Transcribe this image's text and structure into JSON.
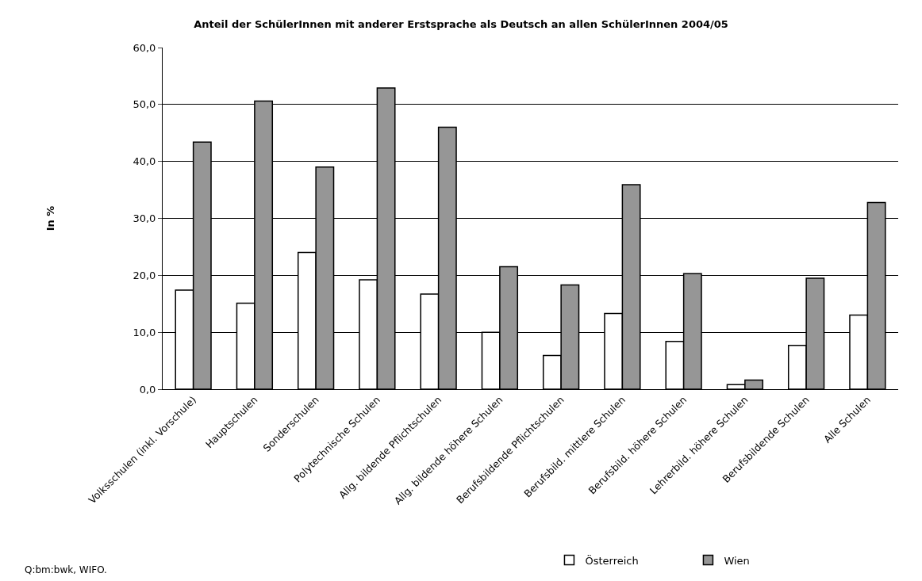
{
  "chart_data": {
    "type": "bar",
    "title": "Anteil der SchülerInnen mit anderer Erstsprache als Deutsch an allen SchülerInnen 2004/05",
    "ylabel": "In %",
    "categories": [
      "Volksschulen (inkl. Vorschule)",
      "Hauptschulen",
      "Sonderschulen",
      "Polytechnische Schulen",
      "Allg. bildende Pflichtschulen",
      "Allg. bildende höhere Schulen",
      "Berufsbildende Pflichtschulen",
      "Berufsbild. mittlere Schulen",
      "Berufsbild. höhere Schulen",
      "Lehrerbild. höhere Schulen",
      "Berufsbildende Schulen",
      "Alle Schulen"
    ],
    "series": [
      {
        "name": "Österreich",
        "color": "#ffffff",
        "values": [
          17.4,
          15.1,
          24.0,
          19.2,
          16.7,
          10.0,
          5.9,
          13.3,
          8.4,
          0.8,
          7.7,
          13.0
        ]
      },
      {
        "name": "Wien",
        "color": "#969696",
        "values": [
          43.4,
          50.6,
          39.0,
          52.9,
          46.0,
          21.5,
          18.3,
          35.9,
          20.3,
          1.6,
          19.5,
          32.8
        ]
      }
    ],
    "ylim": [
      0,
      60
    ],
    "yticks": [
      {
        "value": 0,
        "label": "0,0"
      },
      {
        "value": 10,
        "label": "10,0"
      },
      {
        "value": 20,
        "label": "20,0"
      },
      {
        "value": 30,
        "label": "30,0"
      },
      {
        "value": 40,
        "label": "40,0"
      },
      {
        "value": 50,
        "label": "50,0"
      },
      {
        "value": 60,
        "label": "60,0"
      }
    ],
    "grid": "y",
    "legend": "bottom",
    "annotations": [
      "Q:bm:bwk, WIFO."
    ]
  }
}
